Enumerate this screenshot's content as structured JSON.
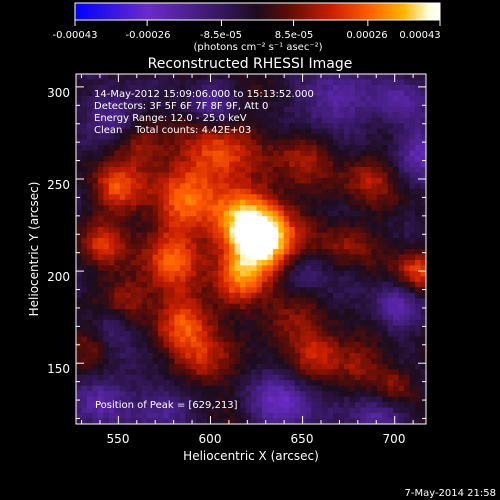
{
  "colors": {
    "background": "#000000",
    "foreground": "#ffffff",
    "colormap": [
      "#0000ff",
      "#6a2cc8",
      "#3a1a6a",
      "#1c0c1c",
      "#5a0c08",
      "#c81e00",
      "#ff5a00",
      "#ffb400",
      "#ffffe0",
      "#ffffff"
    ]
  },
  "colorbar": {
    "ticks": [
      "-0.00043",
      "-0.00026",
      "-8.5e-05",
      "8.5e-05",
      "0.00026",
      "0.00043"
    ],
    "unit_label": "(photons cm⁻² s⁻¹ asec⁻²)"
  },
  "chart_data": {
    "type": "heatmap",
    "title": "Reconstructed RHESSI Image",
    "xlabel": "Heliocentric X (arcsec)",
    "ylabel": "Heliocentric Y (arcsec)",
    "xlim": [
      527,
      717
    ],
    "ylim": [
      117,
      307
    ],
    "xticks": [
      "550",
      "600",
      "650",
      "700"
    ],
    "yticks": [
      "150",
      "200",
      "250",
      "300"
    ],
    "colorbar_range": [
      -0.00043,
      0.00043
    ],
    "peak": [
      629,
      213
    ],
    "info_lines": [
      "14-May-2012 15:09:06.000 to 15:13:52.000",
      "Detectors: 3F 5F 6F 7F 8F 9F, Att 0",
      "Energy Range: 12.0 - 25.0 keV",
      "Clean    Total counts: 4.42E+03"
    ],
    "peak_label": "Position of Peak = [629,213]",
    "blobs": [
      {
        "x": 629,
        "y": 215,
        "r": 13,
        "v": 1.0
      },
      {
        "x": 620,
        "y": 228,
        "r": 14,
        "v": 0.55
      },
      {
        "x": 615,
        "y": 195,
        "r": 10,
        "v": 0.45
      },
      {
        "x": 588,
        "y": 240,
        "r": 16,
        "v": 0.55
      },
      {
        "x": 578,
        "y": 205,
        "r": 13,
        "v": 0.5
      },
      {
        "x": 588,
        "y": 172,
        "r": 11,
        "v": 0.58
      },
      {
        "x": 595,
        "y": 150,
        "r": 10,
        "v": 0.45
      },
      {
        "x": 605,
        "y": 265,
        "r": 12,
        "v": 0.5
      },
      {
        "x": 550,
        "y": 245,
        "r": 10,
        "v": 0.5
      },
      {
        "x": 541,
        "y": 215,
        "r": 9,
        "v": 0.42
      },
      {
        "x": 555,
        "y": 185,
        "r": 9,
        "v": 0.35
      },
      {
        "x": 563,
        "y": 268,
        "r": 9,
        "v": 0.38
      },
      {
        "x": 533,
        "y": 160,
        "r": 8,
        "v": 0.3
      },
      {
        "x": 660,
        "y": 155,
        "r": 10,
        "v": 0.48
      },
      {
        "x": 640,
        "y": 170,
        "r": 10,
        "v": 0.32
      },
      {
        "x": 648,
        "y": 262,
        "r": 12,
        "v": 0.34
      },
      {
        "x": 685,
        "y": 250,
        "r": 10,
        "v": 0.36
      },
      {
        "x": 675,
        "y": 215,
        "r": 9,
        "v": 0.32
      },
      {
        "x": 712,
        "y": 200,
        "r": 8,
        "v": 0.55
      },
      {
        "x": 700,
        "y": 138,
        "r": 8,
        "v": 0.4
      },
      {
        "x": 680,
        "y": 150,
        "r": 8,
        "v": 0.32
      },
      {
        "x": 548,
        "y": 285,
        "r": 9,
        "v": -0.42
      },
      {
        "x": 665,
        "y": 292,
        "r": 12,
        "v": -0.45
      },
      {
        "x": 700,
        "y": 292,
        "r": 10,
        "v": -0.4
      },
      {
        "x": 715,
        "y": 265,
        "r": 10,
        "v": -0.42
      },
      {
        "x": 700,
        "y": 180,
        "r": 9,
        "v": -0.4
      },
      {
        "x": 650,
        "y": 200,
        "r": 8,
        "v": -0.3
      },
      {
        "x": 540,
        "y": 130,
        "r": 10,
        "v": -0.45
      },
      {
        "x": 575,
        "y": 125,
        "r": 10,
        "v": -0.4
      },
      {
        "x": 640,
        "y": 128,
        "r": 12,
        "v": -0.48
      },
      {
        "x": 690,
        "y": 122,
        "r": 10,
        "v": -0.4
      },
      {
        "x": 545,
        "y": 170,
        "r": 8,
        "v": -0.3
      },
      {
        "x": 600,
        "y": 290,
        "r": 9,
        "v": -0.3
      }
    ]
  },
  "footer": {
    "timestamp": "7-May-2014 21:58"
  }
}
